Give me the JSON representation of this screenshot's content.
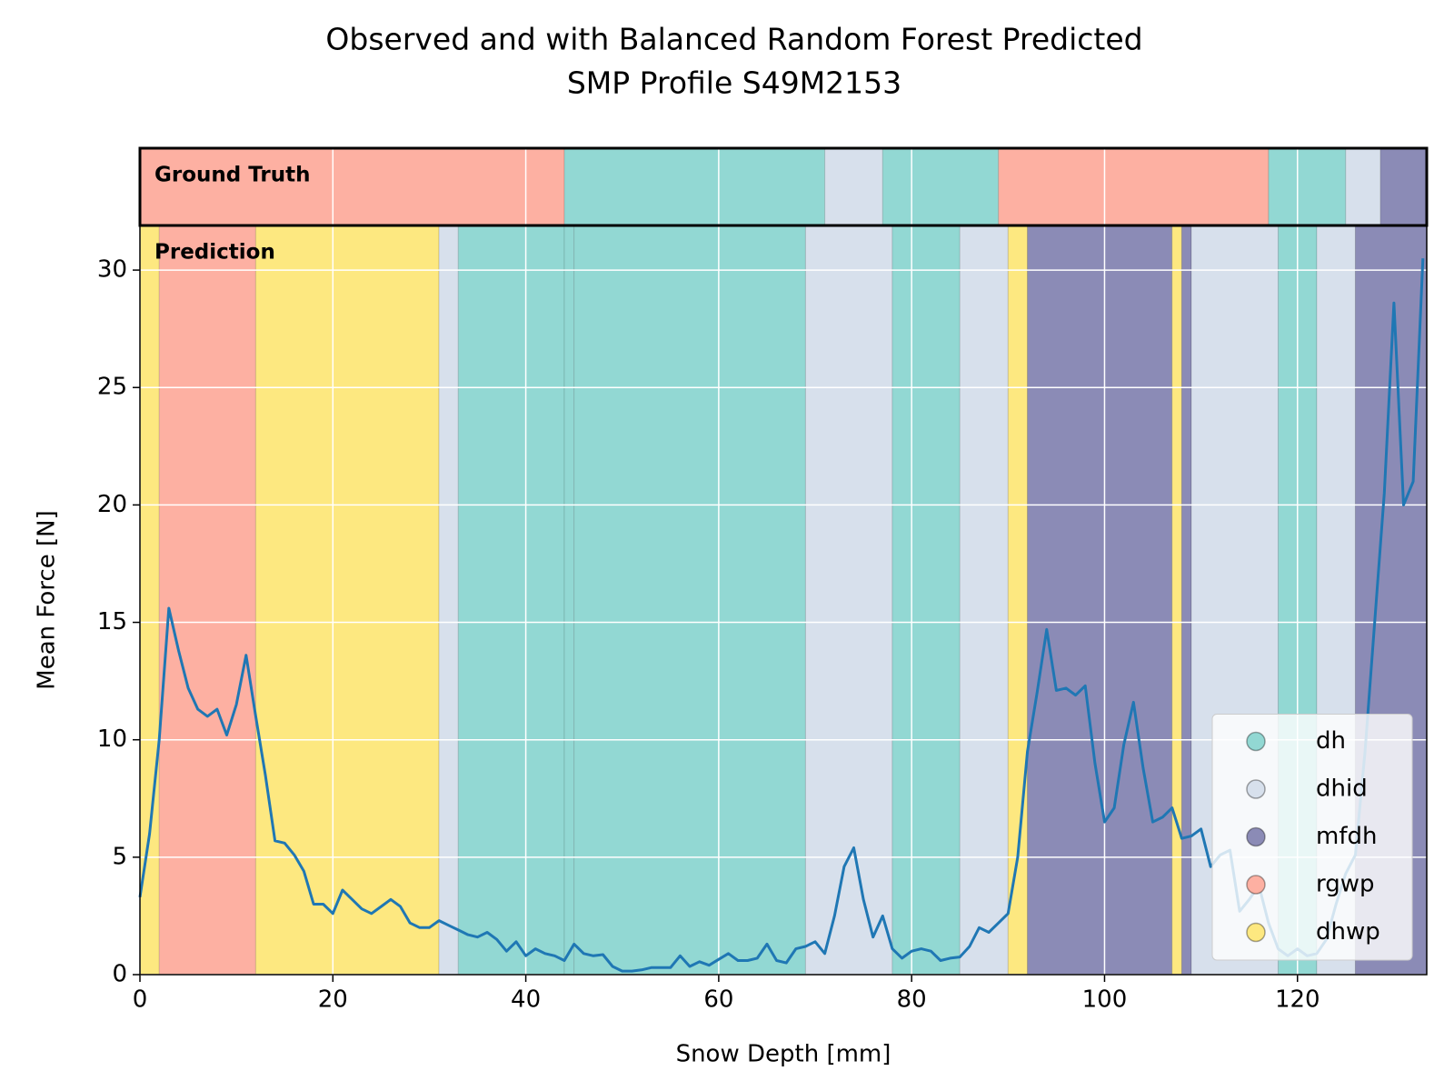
{
  "chart_data": {
    "type": "segmented-line",
    "title": [
      "Observed and with Balanced Random Forest Predicted",
      "SMP Profile S49M2153"
    ],
    "xlabel": "Snow Depth [mm]",
    "ylabel": "Mean Force [N]",
    "xlim": [
      0,
      133.4
    ],
    "ylim": [
      0,
      31.9
    ],
    "xticks": [
      0,
      20,
      40,
      60,
      80,
      100,
      120
    ],
    "yticks": [
      0,
      5,
      10,
      15,
      20,
      25,
      30
    ],
    "grid": true,
    "legend_position": "lower right",
    "classes": [
      {
        "name": "dh",
        "color": "#92d8d3"
      },
      {
        "name": "dhid",
        "color": "#d7e0ec"
      },
      {
        "name": "mfdh",
        "color": "#8b8bb6"
      },
      {
        "name": "rgwp",
        "color": "#fdb0a2"
      },
      {
        "name": "dhwp",
        "color": "#fde880"
      }
    ],
    "panels": [
      {
        "label": "Ground Truth",
        "segments": [
          {
            "class": "rgwp",
            "start": 0,
            "end": 44
          },
          {
            "class": "dh",
            "start": 44,
            "end": 71
          },
          {
            "class": "dhid",
            "start": 71,
            "end": 77
          },
          {
            "class": "dh",
            "start": 77,
            "end": 89
          },
          {
            "class": "rgwp",
            "start": 89,
            "end": 117
          },
          {
            "class": "dh",
            "start": 117,
            "end": 125
          },
          {
            "class": "dhid",
            "start": 125,
            "end": 128.6
          },
          {
            "class": "mfdh",
            "start": 128.6,
            "end": 133.4
          }
        ]
      },
      {
        "label": "Prediction",
        "segments": [
          {
            "class": "dhwp",
            "start": 0,
            "end": 2
          },
          {
            "class": "rgwp",
            "start": 2,
            "end": 12
          },
          {
            "class": "dhwp",
            "start": 12,
            "end": 31
          },
          {
            "class": "dhid",
            "start": 31,
            "end": 33
          },
          {
            "class": "dh",
            "start": 33,
            "end": 44
          },
          {
            "class": "dh",
            "start": 44,
            "end": 45
          },
          {
            "class": "dh",
            "start": 45,
            "end": 69
          },
          {
            "class": "dhid",
            "start": 69,
            "end": 78
          },
          {
            "class": "dh",
            "start": 78,
            "end": 85
          },
          {
            "class": "dhid",
            "start": 85,
            "end": 90
          },
          {
            "class": "dhwp",
            "start": 90,
            "end": 92
          },
          {
            "class": "mfdh",
            "start": 92,
            "end": 107
          },
          {
            "class": "dhwp",
            "start": 107,
            "end": 108
          },
          {
            "class": "mfdh",
            "start": 108,
            "end": 109
          },
          {
            "class": "dhid",
            "start": 109,
            "end": 118
          },
          {
            "class": "dh",
            "start": 118,
            "end": 122
          },
          {
            "class": "dhid",
            "start": 122,
            "end": 126
          },
          {
            "class": "mfdh",
            "start": 126,
            "end": 133.4
          }
        ]
      }
    ],
    "series": [
      {
        "color": "#1f77b4",
        "x": [
          0,
          1,
          2,
          3,
          4,
          5,
          6,
          7,
          8,
          9,
          10,
          11,
          12,
          13,
          14,
          15,
          16,
          17,
          18,
          19,
          20,
          21,
          22,
          23,
          24,
          25,
          26,
          27,
          28,
          29,
          30,
          31,
          32,
          33,
          34,
          35,
          36,
          37,
          38,
          39,
          40,
          41,
          42,
          43,
          44,
          45,
          46,
          47,
          48,
          49,
          50,
          51,
          52,
          53,
          54,
          55,
          56,
          57,
          58,
          59,
          60,
          61,
          62,
          63,
          64,
          65,
          66,
          67,
          68,
          69,
          70,
          71,
          72,
          73,
          74,
          75,
          76,
          77,
          78,
          79,
          80,
          81,
          82,
          83,
          84,
          85,
          86,
          87,
          88,
          89,
          90,
          91,
          92,
          93,
          94,
          95,
          96,
          97,
          98,
          99,
          100,
          101,
          102,
          103,
          104,
          105,
          106,
          107,
          108,
          109,
          110,
          111,
          112,
          113,
          114,
          115,
          116,
          117,
          118,
          119,
          120,
          121,
          122,
          123,
          124,
          125,
          126,
          127,
          128,
          129,
          130,
          131,
          132,
          133
        ],
        "values": [
          3.3,
          6,
          10,
          15.6,
          13.8,
          12.2,
          11.3,
          11,
          11.3,
          10.2,
          11.5,
          13.6,
          11,
          8.5,
          5.7,
          5.6,
          5.1,
          4.4,
          3.0,
          3.0,
          2.6,
          3.6,
          3.2,
          2.8,
          2.6,
          2.9,
          3.2,
          2.9,
          2.2,
          2.0,
          2.0,
          2.3,
          2.1,
          1.9,
          1.7,
          1.6,
          1.8,
          1.5,
          1.0,
          1.4,
          0.8,
          1.1,
          0.9,
          0.8,
          0.6,
          1.3,
          0.9,
          0.8,
          0.85,
          0.35,
          0.15,
          0.15,
          0.2,
          0.3,
          0.3,
          0.3,
          0.8,
          0.35,
          0.55,
          0.4,
          0.65,
          0.9,
          0.6,
          0.6,
          0.7,
          1.3,
          0.6,
          0.5,
          1.1,
          1.2,
          1.4,
          0.9,
          2.5,
          4.6,
          5.4,
          3.2,
          1.6,
          2.5,
          1.1,
          0.7,
          1.0,
          1.1,
          1.0,
          0.6,
          0.7,
          0.75,
          1.2,
          2.0,
          1.8,
          2.2,
          2.6,
          5.0,
          9.5,
          12,
          14.7,
          12.1,
          12.2,
          11.9,
          12.3,
          9.0,
          6.5,
          7.1,
          9.8,
          11.6,
          8.8,
          6.5,
          6.7,
          7.1,
          5.8,
          5.9,
          6.2,
          4.6,
          5.1,
          5.3,
          2.7,
          3.2,
          3.8,
          2.2,
          1.1,
          0.8,
          1.1,
          0.8,
          0.9,
          1.5,
          3.0,
          4.3,
          5.1,
          9.5,
          15,
          20.5,
          28.6,
          20.0,
          21,
          30.5
        ]
      }
    ]
  }
}
